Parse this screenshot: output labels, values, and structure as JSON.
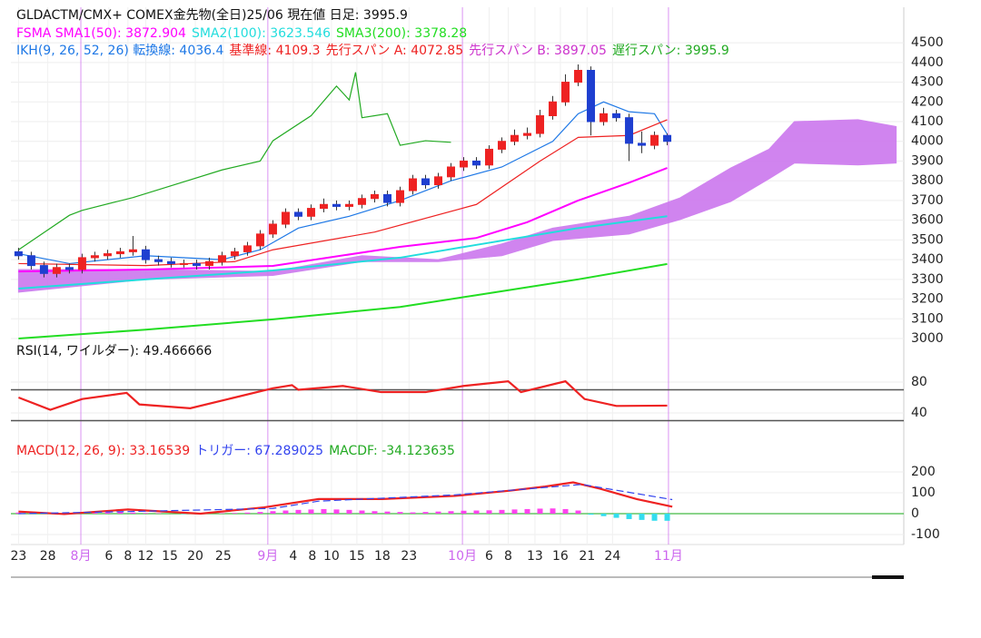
{
  "chart_data": {
    "type": "candlestick",
    "title": "GLDACTM/CMX+ COMEX金先物(全日)25/06  現在値 日足: 3995.9",
    "xlim": [
      -0.6,
      69.6
    ],
    "xticks": [
      {
        "value": 0,
        "label": "23"
      },
      {
        "value": 2.3,
        "label": "28"
      },
      {
        "value": 7.1,
        "label": "6"
      },
      {
        "value": 8.6,
        "label": "8"
      },
      {
        "value": 10,
        "label": "12"
      },
      {
        "value": 11.9,
        "label": "15"
      },
      {
        "value": 13.9,
        "label": "20"
      },
      {
        "value": 16.1,
        "label": "25"
      },
      {
        "value": 21.6,
        "label": "4"
      },
      {
        "value": 23.1,
        "label": "8"
      },
      {
        "value": 24.6,
        "label": "10"
      },
      {
        "value": 26.6,
        "label": "15"
      },
      {
        "value": 28.6,
        "label": "18"
      },
      {
        "value": 30.7,
        "label": "23"
      },
      {
        "value": 37,
        "label": "6"
      },
      {
        "value": 38.5,
        "label": "8"
      },
      {
        "value": 40.6,
        "label": "13"
      },
      {
        "value": 42.6,
        "label": "16"
      },
      {
        "value": 44.7,
        "label": "21"
      },
      {
        "value": 46.7,
        "label": "24"
      }
    ],
    "month_xticks": [
      {
        "value": 4.9,
        "label": "8月"
      },
      {
        "value": 19.6,
        "label": "9月"
      },
      {
        "value": 34.9,
        "label": "10月"
      },
      {
        "value": 51.1,
        "label": "11月"
      }
    ],
    "month_color": "#cc66ee",
    "ylim": [
      2977,
      4680
    ],
    "yticks": [
      3000,
      3100,
      3200,
      3300,
      3400,
      3500,
      3600,
      3700,
      3800,
      3900,
      4000,
      4100,
      4200,
      4300,
      4400,
      4500
    ],
    "grid": true,
    "up_color": "#ee2222",
    "down_color": "#1e3fd0",
    "open": [
      3440,
      3420,
      3370,
      3330,
      3360,
      3350,
      3410,
      3420,
      3430,
      3440,
      3450,
      3400,
      3390,
      3380,
      3380,
      3370,
      3390,
      3420,
      3440,
      3470,
      3530,
      3580,
      3640,
      3620,
      3660,
      3680,
      3670,
      3680,
      3710,
      3730,
      3690,
      3750,
      3810,
      3780,
      3820,
      3870,
      3900,
      3880,
      3960,
      4000,
      4030,
      4040,
      4130,
      4200,
      4300,
      4360,
      4100,
      4140,
      4120,
      3990,
      3980,
      4030
    ],
    "high": [
      3460,
      3440,
      3390,
      3380,
      3380,
      3430,
      3440,
      3450,
      3460,
      3520,
      3470,
      3420,
      3410,
      3400,
      3400,
      3410,
      3440,
      3460,
      3490,
      3550,
      3600,
      3660,
      3660,
      3680,
      3710,
      3700,
      3700,
      3730,
      3750,
      3750,
      3770,
      3830,
      3830,
      3840,
      3890,
      3920,
      3920,
      3980,
      4020,
      4060,
      4070,
      4160,
      4230,
      4340,
      4390,
      4380,
      4170,
      4160,
      4140,
      4050,
      4050,
      4040
    ],
    "low": [
      3400,
      3350,
      3310,
      3310,
      3330,
      3330,
      3390,
      3400,
      3410,
      3420,
      3380,
      3370,
      3360,
      3360,
      3350,
      3350,
      3370,
      3400,
      3420,
      3450,
      3510,
      3560,
      3600,
      3600,
      3640,
      3650,
      3650,
      3660,
      3690,
      3670,
      3670,
      3730,
      3760,
      3760,
      3800,
      3850,
      3860,
      3860,
      3940,
      3980,
      4010,
      4020,
      4110,
      4180,
      4280,
      4030,
      4080,
      4100,
      3900,
      3940,
      3960,
      3980
    ],
    "close": [
      3420,
      3370,
      3330,
      3360,
      3350,
      3410,
      3420,
      3430,
      3440,
      3450,
      3400,
      3390,
      3380,
      3380,
      3370,
      3390,
      3420,
      3440,
      3470,
      3530,
      3580,
      3640,
      3620,
      3660,
      3680,
      3670,
      3680,
      3710,
      3730,
      3690,
      3750,
      3810,
      3780,
      3820,
      3870,
      3900,
      3880,
      3960,
      4000,
      4030,
      4040,
      4130,
      4200,
      4300,
      4360,
      4100,
      4140,
      4120,
      3990,
      3980,
      4030,
      4000
    ],
    "series": [
      {
        "name": "FSMA SMA1(50): 3872.904",
        "color": "#ff00ff",
        "x": [
          0,
          10,
          20,
          30,
          36,
          40,
          44,
          48,
          51
        ],
        "values": [
          3340,
          3350,
          3368,
          3465,
          3510,
          3590,
          3700,
          3790,
          3865
        ]
      },
      {
        "name": "SMA2(100): 3623.546",
        "color": "#22dddd",
        "x": [
          0,
          10,
          20,
          30,
          36,
          44,
          51
        ],
        "values": [
          3253,
          3300,
          3345,
          3410,
          3475,
          3560,
          3620
        ]
      },
      {
        "name": "SMA3(200): 3378.28",
        "color": "#22dd22",
        "x": [
          0,
          10,
          20,
          30,
          36,
          44,
          51
        ],
        "values": [
          3000,
          3045,
          3097,
          3160,
          3220,
          3300,
          3378
        ]
      },
      {
        "name": "IKH(9, 26, 52, 26) 転換線: 4036.4",
        "color": "#1e78e6",
        "x": [
          0,
          4,
          10,
          16,
          19,
          22,
          26,
          30,
          34,
          38,
          42,
          44,
          46,
          48,
          50,
          51
        ],
        "values": [
          3430,
          3380,
          3420,
          3400,
          3450,
          3560,
          3620,
          3700,
          3800,
          3870,
          4000,
          4140,
          4200,
          4150,
          4140,
          4036.4
        ]
      },
      {
        "name": "基準線: 4109.3",
        "color": "#ee2222",
        "x": [
          0,
          10,
          17,
          20,
          28,
          36,
          41,
          44,
          48,
          51
        ],
        "values": [
          3380,
          3370,
          3390,
          3450,
          3540,
          3680,
          3900,
          4020,
          4030,
          4109.3
        ]
      },
      {
        "name": "遅行スパン: 3995.9",
        "color": "#22aa22",
        "x": [
          0,
          4,
          5,
          9,
          13,
          16,
          19,
          20,
          23,
          25,
          26,
          26.5,
          27,
          29,
          30,
          32,
          34
        ],
        "values": [
          3450,
          3625,
          3650,
          3715,
          3795,
          3855,
          3900,
          4003,
          4130,
          4280,
          4210,
          4350,
          4120,
          4140,
          3980,
          4003,
          3995
        ]
      }
    ],
    "kumo": {
      "x": [
        0,
        10,
        20,
        27,
        33,
        38,
        42,
        48,
        52,
        56,
        59,
        61,
        66,
        69
      ],
      "span_a": {
        "name": "先行スパン A: 4072.85",
        "color": "#ee2222",
        "values": [
          3350,
          3350,
          3340,
          3420,
          3400,
          3480,
          3560,
          3620,
          3713,
          3865,
          3960,
          4100,
          4110,
          4075
        ]
      },
      "span_b": {
        "name": "先行スパン B: 3897.05",
        "color": "#cc33cc",
        "values": [
          3235,
          3300,
          3320,
          3390,
          3390,
          3420,
          3497,
          3530,
          3603,
          3695,
          3810,
          3890,
          3880,
          3890
        ]
      },
      "fill": "#cc77ee"
    },
    "rsi": {
      "name": "RSI(14, ワイルダー): 49.466666",
      "color": "#ee2222",
      "ylim": [
        7,
        130.6
      ],
      "yticks": [
        40,
        80
      ],
      "levels": [
        70,
        30
      ],
      "x": [
        0,
        2.5,
        5,
        8.5,
        9.5,
        13.5,
        16.5,
        20,
        21.5,
        22,
        25.5,
        28.5,
        32,
        35,
        38.5,
        39.5,
        43,
        44.5,
        47,
        51
      ],
      "values": [
        60,
        44,
        58,
        66,
        51,
        46,
        58,
        72,
        76,
        70,
        75,
        67,
        67,
        75,
        81,
        67,
        81,
        58,
        49,
        49.47
      ]
    },
    "macd": {
      "ylim": [
        -148,
        361
      ],
      "yticks": [
        -100,
        0,
        100,
        200
      ],
      "zero_color": "#44bb44",
      "series": [
        {
          "name": "MACD(12, 26, 9): 33.16539",
          "color": "#ee2222",
          "x": [
            0,
            3.6,
            8.6,
            14.3,
            19.3,
            23.6,
            28.6,
            34.3,
            38.6,
            41.4,
            43.6,
            45.7,
            48.6,
            51.4
          ],
          "values": [
            10,
            -2,
            20,
            0,
            30,
            70,
            70,
            85,
            110,
            130,
            150,
            120,
            70,
            33.17
          ]
        },
        {
          "name": "トリガー: 67.289025",
          "color": "#3344ee",
          "dashed": true,
          "x": [
            0,
            8.6,
            20,
            23.6,
            34.3,
            44.3,
            51.4
          ],
          "values": [
            0,
            10,
            25,
            60,
            90,
            140,
            67.29
          ]
        }
      ],
      "histogram": {
        "name": "MACDF: -34.123635",
        "color": "#22aa22",
        "pos_color": "#ff44ee",
        "neg_color": "#33ddee",
        "values": [
          5,
          3,
          2,
          0,
          -2,
          2,
          4,
          6,
          8,
          5,
          3,
          2,
          0,
          -2,
          -3,
          0,
          2,
          3,
          5,
          8,
          12,
          15,
          18,
          20,
          22,
          20,
          18,
          15,
          12,
          10,
          8,
          6,
          8,
          10,
          12,
          14,
          15,
          16,
          18,
          20,
          22,
          24,
          25,
          22,
          15,
          -5,
          -12,
          -20,
          -26,
          -30,
          -34,
          -34.12
        ]
      }
    }
  }
}
